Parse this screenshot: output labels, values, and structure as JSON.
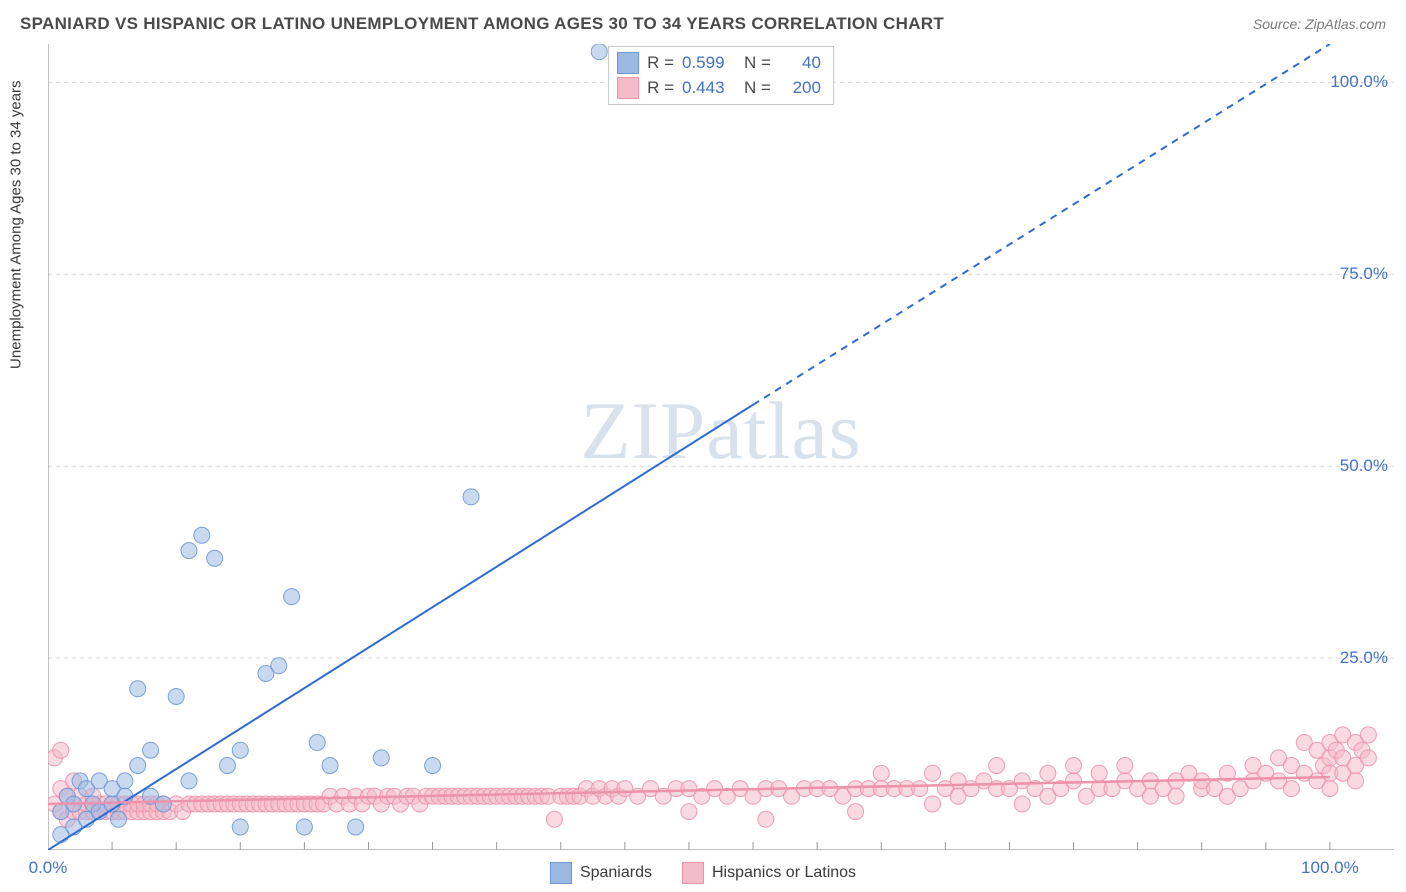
{
  "header": {
    "title": "SPANIARD VS HISPANIC OR LATINO UNEMPLOYMENT AMONG AGES 30 TO 34 YEARS CORRELATION CHART",
    "source": "Source: ZipAtlas.com"
  },
  "chart": {
    "type": "scatter",
    "y_axis_label": "Unemployment Among Ages 30 to 34 years",
    "watermark": "ZIPatlas",
    "background_color": "#ffffff",
    "grid_color": "#d6d6d6",
    "axis_color": "#9a9a9a",
    "tick_color": "#9a9a9a",
    "xlim": [
      0,
      105
    ],
    "ylim": [
      0,
      105
    ],
    "x_ticks_major": [
      0,
      100
    ],
    "x_tick_labels": [
      "0.0%",
      "100.0%"
    ],
    "x_minor_step": 5,
    "y_ticks": [
      25,
      50,
      75,
      100
    ],
    "y_tick_labels": [
      "25.0%",
      "50.0%",
      "75.0%",
      "100.0%"
    ],
    "marker_radius": 8,
    "marker_opacity": 0.55,
    "marker_stroke_opacity": 0.9,
    "series": [
      {
        "name": "Spaniards",
        "fill_color": "#9cb9e4",
        "stroke_color": "#6f98d6",
        "line_color": "#2f6bd0",
        "r_value": "0.599",
        "n_value": "40",
        "regression": {
          "x1": 0,
          "y1": 0,
          "x2_solid": 55,
          "y2_solid": 58,
          "x2": 100,
          "y2": 105,
          "width": 2
        },
        "points": [
          [
            1,
            2
          ],
          [
            1,
            5
          ],
          [
            1.5,
            7
          ],
          [
            2,
            3
          ],
          [
            2,
            6
          ],
          [
            2.5,
            9
          ],
          [
            3,
            4
          ],
          [
            3,
            8
          ],
          [
            3.5,
            6
          ],
          [
            4,
            5
          ],
          [
            4,
            9
          ],
          [
            5,
            6
          ],
          [
            5,
            8
          ],
          [
            5.5,
            4
          ],
          [
            6,
            9
          ],
          [
            6,
            7
          ],
          [
            7,
            11
          ],
          [
            7,
            21
          ],
          [
            8,
            7
          ],
          [
            8,
            13
          ],
          [
            9,
            6
          ],
          [
            10,
            20
          ],
          [
            11,
            9
          ],
          [
            11,
            39
          ],
          [
            12,
            41
          ],
          [
            13,
            38
          ],
          [
            14,
            11
          ],
          [
            15,
            3
          ],
          [
            15,
            13
          ],
          [
            17,
            23
          ],
          [
            18,
            24
          ],
          [
            19,
            33
          ],
          [
            20,
            3
          ],
          [
            21,
            14
          ],
          [
            22,
            11
          ],
          [
            24,
            3
          ],
          [
            26,
            12
          ],
          [
            30,
            11
          ],
          [
            33,
            46
          ],
          [
            43,
            104
          ]
        ]
      },
      {
        "name": "Hispanics or Latinos",
        "fill_color": "#f4bccb",
        "stroke_color": "#ec92ab",
        "line_color": "#ec92ab",
        "r_value": "0.443",
        "n_value": "200",
        "regression": {
          "x1": 0,
          "y1": 6,
          "x2_solid": 100,
          "y2_solid": 9.5,
          "x2": 100,
          "y2": 9.5,
          "width": 2.5
        },
        "points": [
          [
            0.5,
            6
          ],
          [
            0.5,
            12
          ],
          [
            1,
            5
          ],
          [
            1,
            8
          ],
          [
            1,
            13
          ],
          [
            1.5,
            4
          ],
          [
            1.5,
            7
          ],
          [
            2,
            5
          ],
          [
            2,
            6
          ],
          [
            2,
            9
          ],
          [
            2.5,
            5
          ],
          [
            2.5,
            7
          ],
          [
            3,
            5
          ],
          [
            3,
            6
          ],
          [
            3.5,
            5
          ],
          [
            3.5,
            7
          ],
          [
            4,
            5
          ],
          [
            4,
            6
          ],
          [
            4.5,
            5
          ],
          [
            4.5,
            6
          ],
          [
            5,
            5
          ],
          [
            5,
            6
          ],
          [
            5.5,
            5
          ],
          [
            5.5,
            6
          ],
          [
            6,
            5
          ],
          [
            6,
            6
          ],
          [
            6.5,
            5
          ],
          [
            6.5,
            6
          ],
          [
            7,
            5
          ],
          [
            7,
            6
          ],
          [
            7.5,
            5
          ],
          [
            7.5,
            6
          ],
          [
            8,
            5
          ],
          [
            8,
            6
          ],
          [
            8.5,
            5
          ],
          [
            8.5,
            6
          ],
          [
            9,
            5
          ],
          [
            9,
            6
          ],
          [
            9.5,
            5
          ],
          [
            10,
            6
          ],
          [
            10.5,
            5
          ],
          [
            11,
            6
          ],
          [
            11.5,
            6
          ],
          [
            12,
            6
          ],
          [
            12.5,
            6
          ],
          [
            13,
            6
          ],
          [
            13.5,
            6
          ],
          [
            14,
            6
          ],
          [
            14.5,
            6
          ],
          [
            15,
            6
          ],
          [
            15.5,
            6
          ],
          [
            16,
            6
          ],
          [
            16.5,
            6
          ],
          [
            17,
            6
          ],
          [
            17.5,
            6
          ],
          [
            18,
            6
          ],
          [
            18.5,
            6
          ],
          [
            19,
            6
          ],
          [
            19.5,
            6
          ],
          [
            20,
            6
          ],
          [
            20.5,
            6
          ],
          [
            21,
            6
          ],
          [
            21.5,
            6
          ],
          [
            22,
            7
          ],
          [
            22.5,
            6
          ],
          [
            23,
            7
          ],
          [
            23.5,
            6
          ],
          [
            24,
            7
          ],
          [
            24.5,
            6
          ],
          [
            25,
            7
          ],
          [
            25.5,
            7
          ],
          [
            26,
            6
          ],
          [
            26.5,
            7
          ],
          [
            27,
            7
          ],
          [
            27.5,
            6
          ],
          [
            28,
            7
          ],
          [
            28.5,
            7
          ],
          [
            29,
            6
          ],
          [
            29.5,
            7
          ],
          [
            30,
            7
          ],
          [
            30.5,
            7
          ],
          [
            31,
            7
          ],
          [
            31.5,
            7
          ],
          [
            32,
            7
          ],
          [
            32.5,
            7
          ],
          [
            33,
            7
          ],
          [
            33.5,
            7
          ],
          [
            34,
            7
          ],
          [
            34.5,
            7
          ],
          [
            35,
            7
          ],
          [
            35.5,
            7
          ],
          [
            36,
            7
          ],
          [
            36.5,
            7
          ],
          [
            37,
            7
          ],
          [
            37.5,
            7
          ],
          [
            38,
            7
          ],
          [
            38.5,
            7
          ],
          [
            39,
            7
          ],
          [
            39.5,
            4
          ],
          [
            40,
            7
          ],
          [
            40.5,
            7
          ],
          [
            41,
            7
          ],
          [
            41.5,
            7
          ],
          [
            42,
            8
          ],
          [
            42.5,
            7
          ],
          [
            43,
            8
          ],
          [
            43.5,
            7
          ],
          [
            44,
            8
          ],
          [
            44.5,
            7
          ],
          [
            45,
            8
          ],
          [
            46,
            7
          ],
          [
            47,
            8
          ],
          [
            48,
            7
          ],
          [
            49,
            8
          ],
          [
            50,
            5
          ],
          [
            50,
            8
          ],
          [
            51,
            7
          ],
          [
            52,
            8
          ],
          [
            53,
            7
          ],
          [
            54,
            8
          ],
          [
            55,
            7
          ],
          [
            56,
            8
          ],
          [
            56,
            4
          ],
          [
            57,
            8
          ],
          [
            58,
            7
          ],
          [
            59,
            8
          ],
          [
            60,
            8
          ],
          [
            61,
            8
          ],
          [
            62,
            7
          ],
          [
            63,
            8
          ],
          [
            63,
            5
          ],
          [
            64,
            8
          ],
          [
            65,
            8
          ],
          [
            65,
            10
          ],
          [
            66,
            8
          ],
          [
            67,
            8
          ],
          [
            68,
            8
          ],
          [
            69,
            10
          ],
          [
            69,
            6
          ],
          [
            70,
            8
          ],
          [
            71,
            9
          ],
          [
            71,
            7
          ],
          [
            72,
            8
          ],
          [
            73,
            9
          ],
          [
            74,
            8
          ],
          [
            74,
            11
          ],
          [
            75,
            8
          ],
          [
            76,
            6
          ],
          [
            76,
            9
          ],
          [
            77,
            8
          ],
          [
            78,
            10
          ],
          [
            78,
            7
          ],
          [
            79,
            8
          ],
          [
            80,
            9
          ],
          [
            80,
            11
          ],
          [
            81,
            7
          ],
          [
            82,
            8
          ],
          [
            82,
            10
          ],
          [
            83,
            8
          ],
          [
            84,
            9
          ],
          [
            84,
            11
          ],
          [
            85,
            8
          ],
          [
            86,
            7
          ],
          [
            86,
            9
          ],
          [
            87,
            8
          ],
          [
            88,
            9
          ],
          [
            88,
            7
          ],
          [
            89,
            10
          ],
          [
            90,
            8
          ],
          [
            90,
            9
          ],
          [
            91,
            8
          ],
          [
            92,
            10
          ],
          [
            92,
            7
          ],
          [
            93,
            8
          ],
          [
            94,
            9
          ],
          [
            94,
            11
          ],
          [
            95,
            10
          ],
          [
            96,
            9
          ],
          [
            96,
            12
          ],
          [
            97,
            8
          ],
          [
            97,
            11
          ],
          [
            98,
            10
          ],
          [
            98,
            14
          ],
          [
            99,
            9
          ],
          [
            99,
            13
          ],
          [
            99.5,
            11
          ],
          [
            100,
            10
          ],
          [
            100,
            12
          ],
          [
            100,
            14
          ],
          [
            100,
            8
          ],
          [
            100.5,
            13
          ],
          [
            101,
            10
          ],
          [
            101,
            15
          ],
          [
            101,
            12
          ],
          [
            102,
            11
          ],
          [
            102,
            14
          ],
          [
            102,
            9
          ],
          [
            102.5,
            13
          ],
          [
            103,
            12
          ],
          [
            103,
            15
          ]
        ]
      }
    ]
  },
  "legend": {
    "items": [
      {
        "label": "Spaniards",
        "fill": "#9cb9e4",
        "stroke": "#6f98d6"
      },
      {
        "label": "Hispanics or Latinos",
        "fill": "#f4bccb",
        "stroke": "#ec92ab"
      }
    ]
  }
}
